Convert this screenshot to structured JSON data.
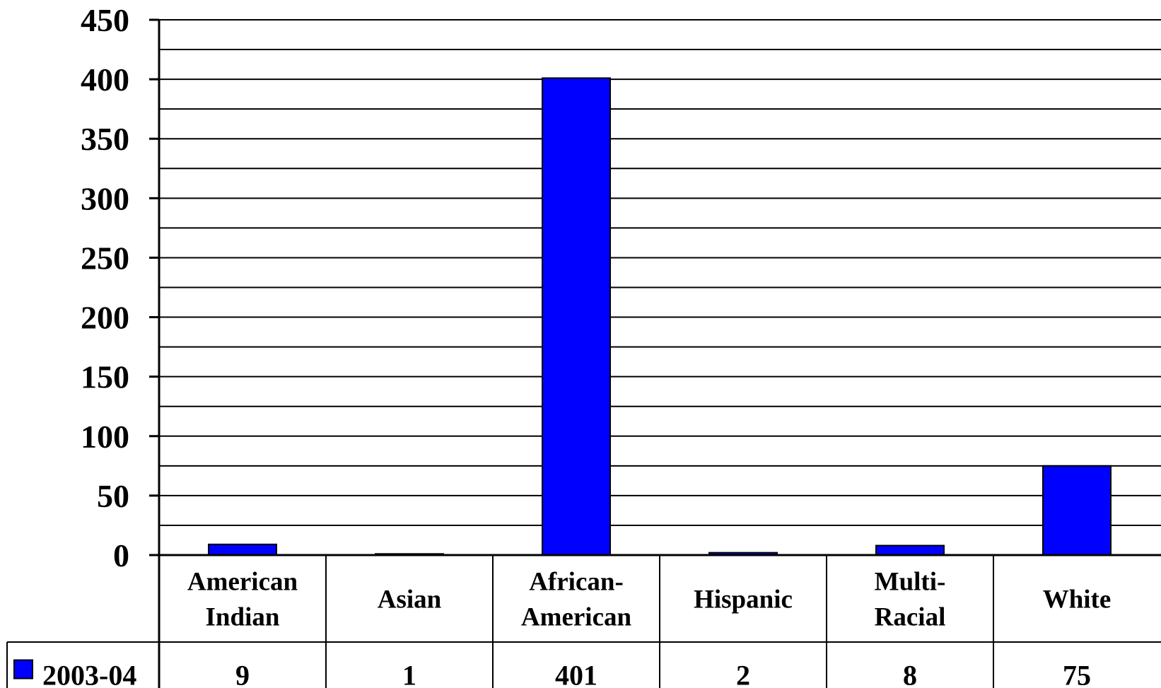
{
  "chart_data": {
    "type": "bar",
    "title": "",
    "xlabel": "",
    "ylabel": "",
    "ylim": [
      0,
      450
    ],
    "yticks": [
      0,
      50,
      100,
      150,
      200,
      250,
      300,
      350,
      400,
      450
    ],
    "grid": true,
    "categories": [
      [
        "American",
        "Indian"
      ],
      [
        "Asian"
      ],
      [
        "African-",
        "American"
      ],
      [
        "Hispanic"
      ],
      [
        "Multi-",
        "Racial"
      ],
      [
        "White"
      ]
    ],
    "series": [
      {
        "name": "2003-04",
        "values": [
          9,
          1,
          401,
          2,
          8,
          75
        ],
        "color": "#0000FF"
      }
    ],
    "data_table": true
  }
}
